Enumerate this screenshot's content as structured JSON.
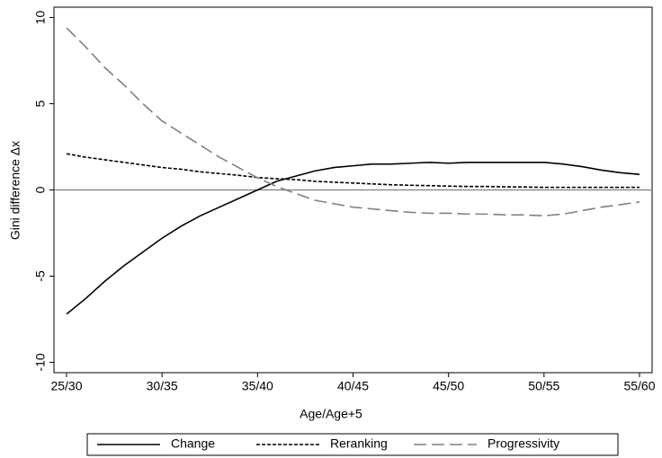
{
  "chart_data": {
    "type": "line",
    "x_label": "Age/Age+5",
    "y_label": "Gini difference Δx",
    "categories": [
      "25/30",
      null,
      null,
      null,
      null,
      "30/35",
      null,
      null,
      null,
      null,
      "35/40",
      null,
      null,
      null,
      null,
      "40/45",
      null,
      null,
      null,
      null,
      "45/50",
      null,
      null,
      null,
      null,
      "50/55",
      null,
      null,
      null,
      null,
      "55/60"
    ],
    "series": [
      {
        "name": "Change",
        "color": "#000000",
        "dash": "none",
        "values": [
          -7.2,
          -6.3,
          -5.3,
          -4.4,
          -3.6,
          -2.8,
          -2.1,
          -1.5,
          -1.0,
          -0.5,
          0.0,
          0.5,
          0.8,
          1.1,
          1.3,
          1.4,
          1.5,
          1.5,
          1.55,
          1.6,
          1.55,
          1.6,
          1.6,
          1.6,
          1.6,
          1.6,
          1.5,
          1.35,
          1.15,
          1.0,
          0.9
        ]
      },
      {
        "name": "Reranking",
        "color": "#000000",
        "dash": "4 2",
        "values": [
          2.1,
          1.9,
          1.75,
          1.6,
          1.45,
          1.3,
          1.2,
          1.05,
          0.95,
          0.85,
          0.72,
          0.65,
          0.6,
          0.5,
          0.45,
          0.4,
          0.35,
          0.3,
          0.27,
          0.25,
          0.22,
          0.2,
          0.2,
          0.18,
          0.17,
          0.15,
          0.15,
          0.15,
          0.15,
          0.15,
          0.15
        ]
      },
      {
        "name": "Progressivity",
        "color": "#808080",
        "dash": "14 6",
        "values": [
          9.4,
          8.3,
          7.1,
          6.1,
          5.0,
          4.0,
          3.3,
          2.6,
          1.9,
          1.3,
          0.7,
          0.2,
          -0.2,
          -0.6,
          -0.8,
          -1.0,
          -1.1,
          -1.2,
          -1.3,
          -1.35,
          -1.35,
          -1.4,
          -1.4,
          -1.45,
          -1.45,
          -1.5,
          -1.4,
          -1.2,
          -1.0,
          -0.85,
          -0.7
        ]
      }
    ],
    "ylim": [
      -10.6,
      10.6
    ],
    "yticks": [
      -10,
      -5,
      0,
      5,
      10
    ],
    "reference_line": 0,
    "legend": "bottom"
  }
}
